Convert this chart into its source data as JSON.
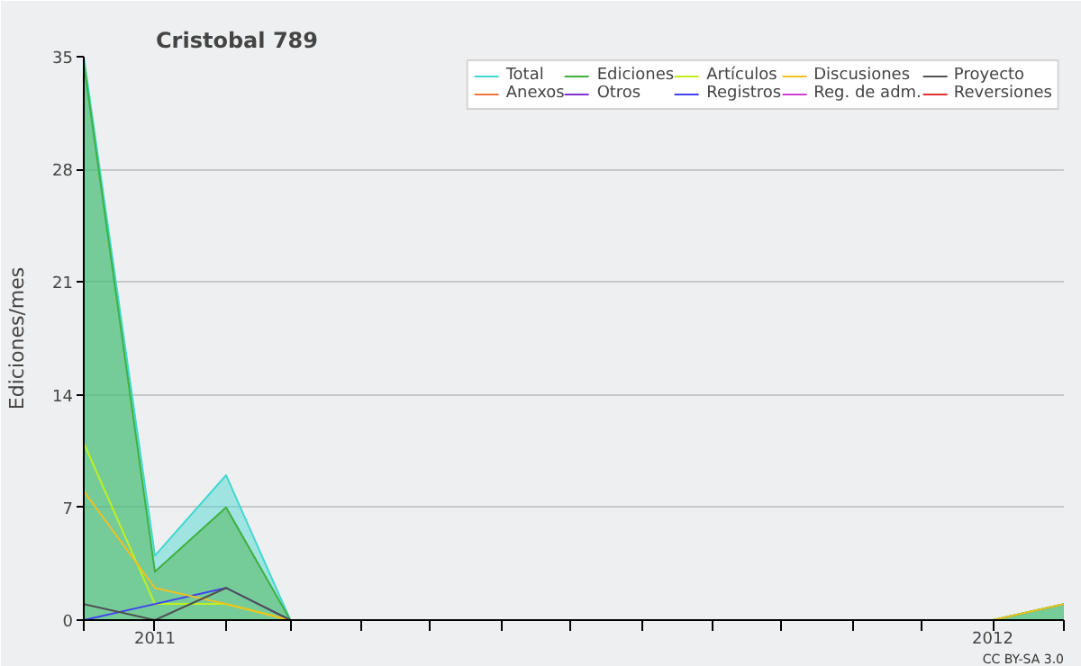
{
  "chart_data": {
    "type": "line",
    "title": "Cristobal 789",
    "ylabel": "Ediciones/mes",
    "x": [
      "2010-12",
      "2011-01",
      "2011-02",
      "2011-03",
      "2011-04",
      "2011-05",
      "2011-06",
      "2011-07",
      "2011-08",
      "2011-09",
      "2011-10",
      "2011-11",
      "2011-12",
      "2012-01",
      "2012-02"
    ],
    "series": [
      {
        "name": "Total",
        "type": "area",
        "color": "#40d8d0",
        "values": [
          35,
          4,
          9,
          0,
          null,
          null,
          null,
          null,
          null,
          null,
          null,
          null,
          null,
          0,
          1
        ]
      },
      {
        "name": "Anexos",
        "color": "#f07840",
        "values": [
          null,
          null,
          null,
          null,
          null,
          null,
          null,
          null,
          null,
          null,
          null,
          null,
          null,
          null,
          null
        ]
      },
      {
        "name": "Ediciones",
        "type": "area",
        "color": "#40b040",
        "values": [
          34.6,
          3,
          7,
          0,
          null,
          null,
          null,
          null,
          null,
          null,
          null,
          null,
          null,
          0,
          1
        ]
      },
      {
        "name": "Otros",
        "color": "#8030d0",
        "values": [
          null,
          null,
          null,
          null,
          null,
          null,
          null,
          null,
          null,
          null,
          null,
          null,
          null,
          null,
          null
        ]
      },
      {
        "name": "Artículos",
        "color": "#c0f020",
        "values": [
          11,
          1,
          1,
          0,
          null,
          null,
          null,
          null,
          null,
          null,
          null,
          null,
          null,
          null,
          null
        ]
      },
      {
        "name": "Registros",
        "color": "#4040f0",
        "values": [
          0,
          1,
          2,
          0,
          null,
          null,
          null,
          null,
          null,
          null,
          null,
          null,
          null,
          null,
          null
        ]
      },
      {
        "name": "Discusiones",
        "color": "#f0c020",
        "values": [
          8,
          2,
          1,
          0,
          null,
          null,
          null,
          null,
          null,
          null,
          null,
          null,
          null,
          0,
          1
        ]
      },
      {
        "name": "Reg. de adm.",
        "color": "#d040d0",
        "values": [
          null,
          null,
          null,
          null,
          null,
          null,
          null,
          null,
          null,
          null,
          null,
          null,
          null,
          null,
          null
        ]
      },
      {
        "name": "Proyecto",
        "color": "#505050",
        "values": [
          1,
          0,
          2,
          0,
          null,
          null,
          null,
          null,
          null,
          null,
          null,
          null,
          null,
          null,
          null
        ]
      },
      {
        "name": "Reversiones",
        "color": "#e03030",
        "values": [
          null,
          null,
          null,
          null,
          null,
          null,
          null,
          null,
          null,
          null,
          null,
          null,
          null,
          null,
          null
        ]
      }
    ],
    "xlim": [
      "2010-12",
      "2012-02"
    ],
    "xticks": [
      {
        "value": "2010-12",
        "label": null
      },
      {
        "value": "2011-01",
        "label": "2011"
      },
      {
        "value": "2011-02",
        "label": null
      },
      {
        "value": "2011-03",
        "label": null
      },
      {
        "value": "2011-04",
        "label": null
      },
      {
        "value": "2011-05",
        "label": null
      },
      {
        "value": "2011-06",
        "label": null
      },
      {
        "value": "2011-07",
        "label": null
      },
      {
        "value": "2011-08",
        "label": null
      },
      {
        "value": "2011-09",
        "label": null
      },
      {
        "value": "2011-10",
        "label": null
      },
      {
        "value": "2011-11",
        "label": null
      },
      {
        "value": "2011-12",
        "label": null
      },
      {
        "value": "2012-01",
        "label": "2012"
      },
      {
        "value": "2012-02",
        "label": null
      }
    ],
    "ylim": [
      0,
      35
    ],
    "yticks": [
      0,
      7,
      14,
      21,
      28,
      35
    ],
    "grid": "y",
    "legend": "top right",
    "annotations": [
      "CC BY-SA 3.0"
    ]
  }
}
